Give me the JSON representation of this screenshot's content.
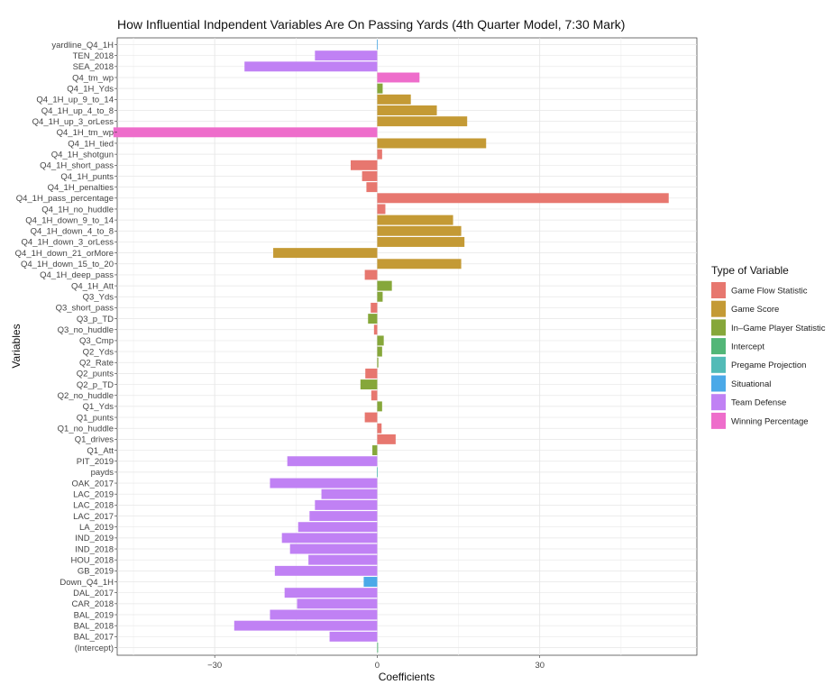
{
  "chart_data": {
    "type": "bar",
    "orientation": "horizontal",
    "title": "How Influential Indpendent Variables Are On Passing Yards (4th Quarter Model, 7:30 Mark)",
    "xlabel": "Coefficients",
    "ylabel": "Variables",
    "xlim": [
      -48,
      59
    ],
    "xticks": [
      -30,
      0,
      30
    ],
    "xtick_labels": [
      "−30",
      "0",
      "30"
    ],
    "grid": true,
    "legend": {
      "title": "Type of Variable",
      "placement": "right",
      "entries": [
        {
          "label": "Game Flow Statistic",
          "color": "#E7776F"
        },
        {
          "label": "Game Score",
          "color": "#C49A35"
        },
        {
          "label": "In–Game Player Statistic",
          "color": "#86A73A"
        },
        {
          "label": "Intercept",
          "color": "#52B677"
        },
        {
          "label": "Pregame Projection",
          "color": "#52BBB7"
        },
        {
          "label": "Situational",
          "color": "#4BA9E8"
        },
        {
          "label": "Team Defense",
          "color": "#C081F4"
        },
        {
          "label": "Winning Percentage",
          "color": "#EE6DCB"
        }
      ]
    },
    "bars": [
      {
        "label": "yardline_Q4_1H",
        "value": 0.0,
        "type": "Situational"
      },
      {
        "label": "TEN_2018",
        "value": -11.5,
        "type": "Team Defense"
      },
      {
        "label": "SEA_2018",
        "value": -24.5,
        "type": "Team Defense"
      },
      {
        "label": "Q4_tm_wp",
        "value": 7.8,
        "type": "Winning Percentage"
      },
      {
        "label": "Q4_1H_Yds",
        "value": 1.0,
        "type": "In–Game Player Statistic"
      },
      {
        "label": "Q4_1H_up_9_to_14",
        "value": 6.2,
        "type": "Game Score"
      },
      {
        "label": "Q4_1H_up_4_to_8",
        "value": 11.0,
        "type": "Game Score"
      },
      {
        "label": "Q4_1H_up_3_orLess",
        "value": 16.6,
        "type": "Game Score"
      },
      {
        "label": "Q4_1H_tm_wp",
        "value": -48.7,
        "type": "Winning Percentage"
      },
      {
        "label": "Q4_1H_tied",
        "value": 20.1,
        "type": "Game Score"
      },
      {
        "label": "Q4_1H_shotgun",
        "value": 0.9,
        "type": "Game Flow Statistic"
      },
      {
        "label": "Q4_1H_short_pass",
        "value": -4.9,
        "type": "Game Flow Statistic"
      },
      {
        "label": "Q4_1H_punts",
        "value": -2.8,
        "type": "Game Flow Statistic"
      },
      {
        "label": "Q4_1H_penalties",
        "value": -2.0,
        "type": "Game Flow Statistic"
      },
      {
        "label": "Q4_1H_pass_percentage",
        "value": 53.8,
        "type": "Game Flow Statistic"
      },
      {
        "label": "Q4_1H_no_huddle",
        "value": 1.5,
        "type": "Game Flow Statistic"
      },
      {
        "label": "Q4_1H_down_9_to_14",
        "value": 14.0,
        "type": "Game Score"
      },
      {
        "label": "Q4_1H_down_4_to_8",
        "value": 15.5,
        "type": "Game Score"
      },
      {
        "label": "Q4_1H_down_3_orLess",
        "value": 16.1,
        "type": "Game Score"
      },
      {
        "label": "Q4_1H_down_21_orMore",
        "value": -19.2,
        "type": "Game Score"
      },
      {
        "label": "Q4_1H_down_15_to_20",
        "value": 15.5,
        "type": "Game Score"
      },
      {
        "label": "Q4_1H_deep_pass",
        "value": -2.3,
        "type": "Game Flow Statistic"
      },
      {
        "label": "Q4_1H_Att",
        "value": 2.7,
        "type": "In–Game Player Statistic"
      },
      {
        "label": "Q3_Yds",
        "value": 1.0,
        "type": "In–Game Player Statistic"
      },
      {
        "label": "Q3_short_pass",
        "value": -1.2,
        "type": "Game Flow Statistic"
      },
      {
        "label": "Q3_p_TD",
        "value": -1.7,
        "type": "In–Game Player Statistic"
      },
      {
        "label": "Q3_no_huddle",
        "value": -0.6,
        "type": "Game Flow Statistic"
      },
      {
        "label": "Q3_Cmp",
        "value": 1.2,
        "type": "In–Game Player Statistic"
      },
      {
        "label": "Q2_Yds",
        "value": 0.9,
        "type": "In–Game Player Statistic"
      },
      {
        "label": "Q2_Rate",
        "value": 0.2,
        "type": "In–Game Player Statistic"
      },
      {
        "label": "Q2_punts",
        "value": -2.2,
        "type": "Game Flow Statistic"
      },
      {
        "label": "Q2_p_TD",
        "value": -3.1,
        "type": "In–Game Player Statistic"
      },
      {
        "label": "Q2_no_huddle",
        "value": -1.1,
        "type": "Game Flow Statistic"
      },
      {
        "label": "Q1_Yds",
        "value": 0.9,
        "type": "In–Game Player Statistic"
      },
      {
        "label": "Q1_punts",
        "value": -2.3,
        "type": "Game Flow Statistic"
      },
      {
        "label": "Q1_no_huddle",
        "value": 0.8,
        "type": "Game Flow Statistic"
      },
      {
        "label": "Q1_drives",
        "value": 3.4,
        "type": "Game Flow Statistic"
      },
      {
        "label": "Q1_Att",
        "value": -0.9,
        "type": "In–Game Player Statistic"
      },
      {
        "label": "PIT_2019",
        "value": -16.6,
        "type": "Team Defense"
      },
      {
        "label": "payds",
        "value": 0.05,
        "type": "Pregame Projection"
      },
      {
        "label": "OAK_2017",
        "value": -19.8,
        "type": "Team Defense"
      },
      {
        "label": "LAC_2019",
        "value": -10.3,
        "type": "Team Defense"
      },
      {
        "label": "LAC_2018",
        "value": -11.5,
        "type": "Team Defense"
      },
      {
        "label": "LAC_2017",
        "value": -12.5,
        "type": "Team Defense"
      },
      {
        "label": "LA_2019",
        "value": -14.6,
        "type": "Team Defense"
      },
      {
        "label": "IND_2019",
        "value": -17.6,
        "type": "Team Defense"
      },
      {
        "label": "IND_2018",
        "value": -16.1,
        "type": "Team Defense"
      },
      {
        "label": "HOU_2018",
        "value": -12.7,
        "type": "Team Defense"
      },
      {
        "label": "GB_2019",
        "value": -18.9,
        "type": "Team Defense"
      },
      {
        "label": "Down_Q4_1H",
        "value": -2.5,
        "type": "Situational"
      },
      {
        "label": "DAL_2017",
        "value": -17.1,
        "type": "Team Defense"
      },
      {
        "label": "CAR_2018",
        "value": -14.8,
        "type": "Team Defense"
      },
      {
        "label": "BAL_2019",
        "value": -19.8,
        "type": "Team Defense"
      },
      {
        "label": "BAL_2018",
        "value": -26.4,
        "type": "Team Defense"
      },
      {
        "label": "BAL_2017",
        "value": -8.8,
        "type": "Team Defense"
      },
      {
        "label": "(Intercept)",
        "value": 0.15,
        "type": "Intercept"
      }
    ]
  }
}
